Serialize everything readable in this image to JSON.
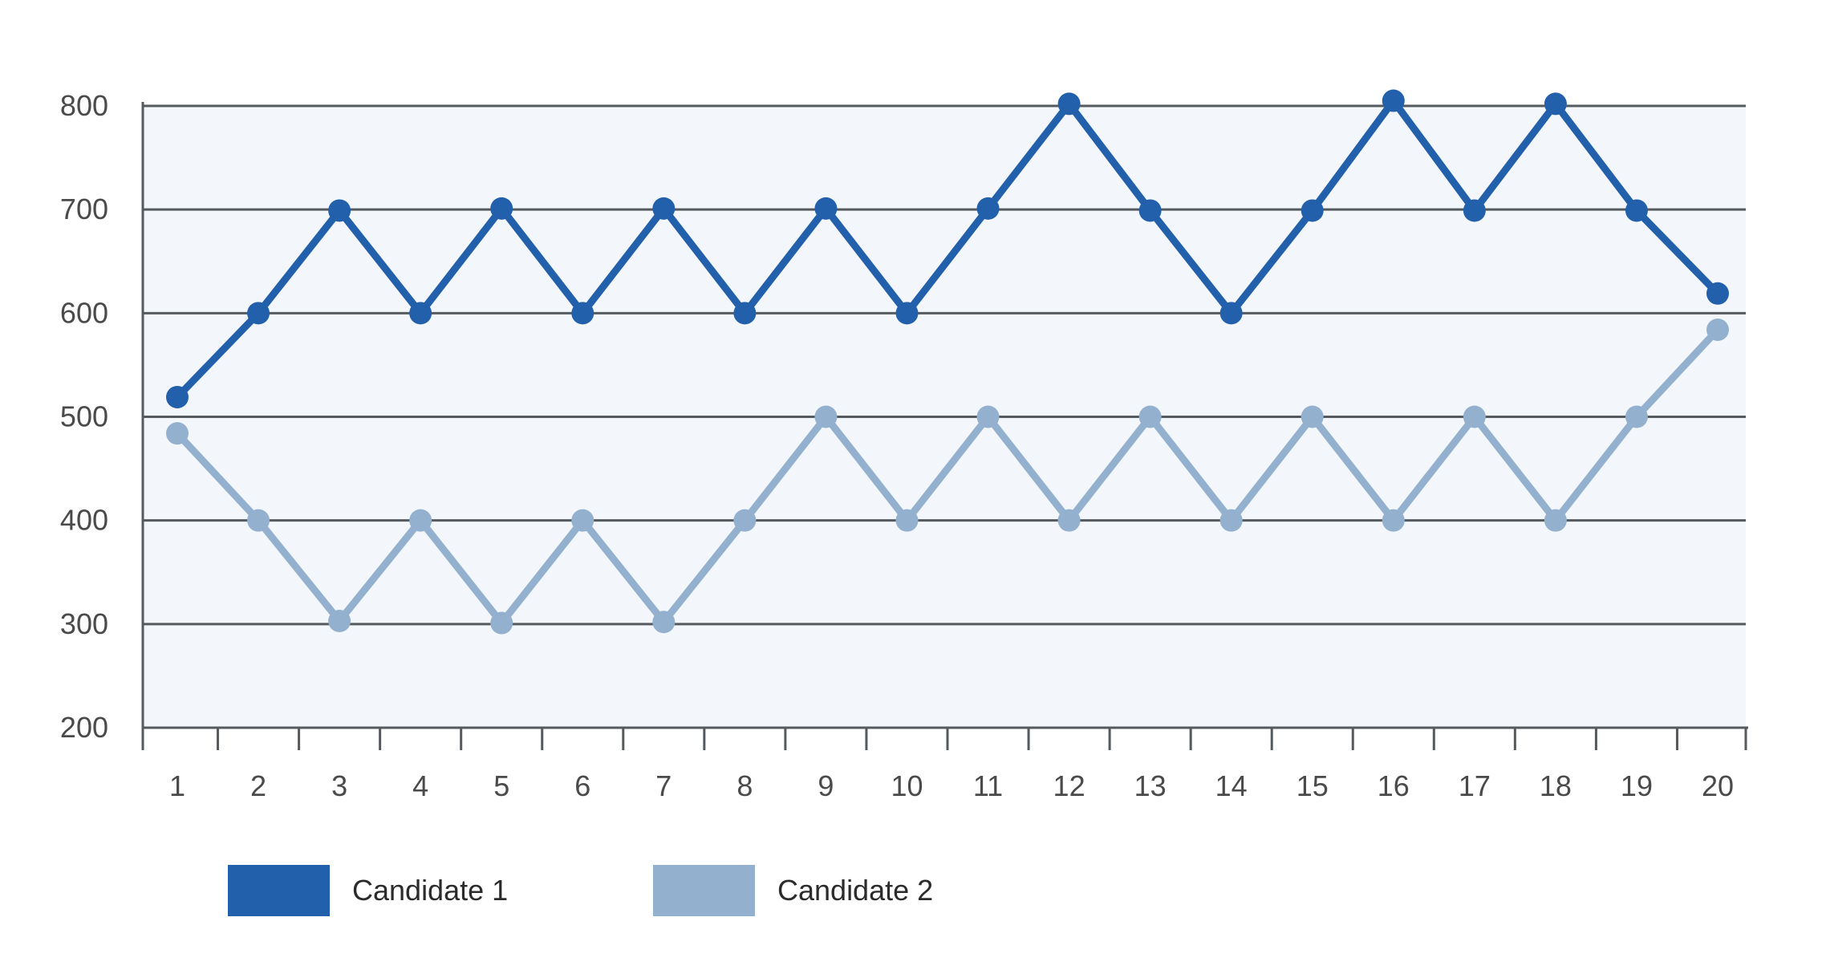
{
  "chart_data": {
    "type": "line",
    "title": "",
    "xlabel": "",
    "ylabel": "",
    "x": [
      "1",
      "2",
      "3",
      "4",
      "5",
      "6",
      "7",
      "8",
      "9",
      "10",
      "11",
      "12",
      "13",
      "14",
      "15",
      "16",
      "17",
      "18",
      "19",
      "20"
    ],
    "ylim": [
      200,
      800
    ],
    "yticks": [
      "200",
      "300",
      "400",
      "500",
      "600",
      "700",
      "800"
    ],
    "grid": true,
    "legend_position": "bottom-left",
    "plot_background": "#f3f7fb",
    "series": [
      {
        "name": "Candidate 1",
        "color": "#2360ac",
        "values": [
          519,
          600,
          699,
          600,
          701,
          600,
          701,
          600,
          701,
          600,
          701,
          802,
          699,
          600,
          699,
          805,
          699,
          802,
          699,
          619
        ]
      },
      {
        "name": "Candidate 2",
        "color": "#93b1cf",
        "values": [
          484,
          400,
          303,
          400,
          301,
          400,
          302,
          400,
          500,
          400,
          500,
          400,
          500,
          400,
          500,
          400,
          500,
          400,
          500,
          584
        ]
      }
    ]
  }
}
